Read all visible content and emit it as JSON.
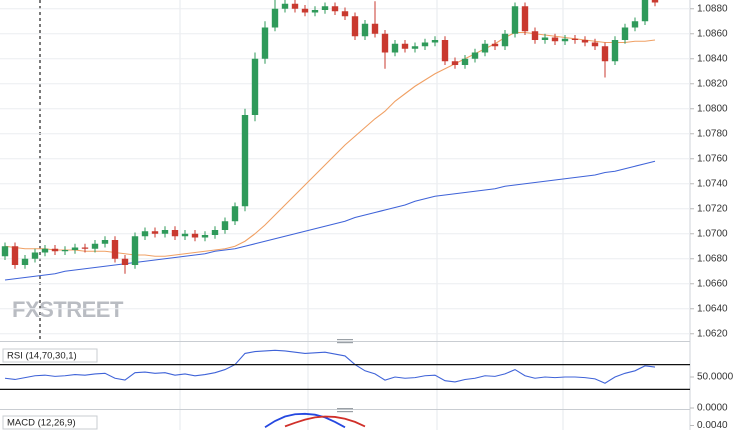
{
  "watermark": "FXSTREET",
  "chart_data": [
    {
      "type": "candlestick",
      "up_color": "#2f9a5a",
      "down_color": "#c9392f",
      "open": [
        1.0682,
        1.069,
        1.0675,
        1.068,
        1.0685,
        1.0688,
        1.0686,
        1.0687,
        1.0689,
        1.0688,
        1.0692,
        1.0695,
        1.068,
        1.0675,
        1.0698,
        1.0702,
        1.07,
        1.0703,
        1.0698,
        1.07,
        1.0697,
        1.0699,
        1.0703,
        1.071,
        1.0722,
        1.0795,
        1.084,
        1.0865,
        1.088,
        1.0884,
        1.088,
        1.0877,
        1.0879,
        1.0882,
        1.0878,
        1.0874,
        1.0858,
        1.0868,
        1.086,
        1.0845,
        1.0852,
        1.0848,
        1.085,
        1.0853,
        1.0855,
        1.0838,
        1.0835,
        1.084,
        1.0845,
        1.0852,
        1.085,
        1.086,
        1.0882,
        1.0862,
        1.0855,
        1.0857,
        1.0854,
        1.0856,
        1.0855,
        1.0853,
        1.085,
        1.0838,
        1.0855,
        1.0865,
        1.087,
        1.0888
      ],
      "high": [
        1.0693,
        1.0693,
        1.0683,
        1.0688,
        1.0691,
        1.0691,
        1.069,
        1.0692,
        1.0692,
        1.0695,
        1.0698,
        1.0698,
        1.0683,
        1.0701,
        1.0705,
        1.0705,
        1.0706,
        1.0706,
        1.0703,
        1.0703,
        1.0702,
        1.0706,
        1.0713,
        1.0725,
        1.08,
        1.0845,
        1.087,
        1.0888,
        1.0888,
        1.0887,
        1.0883,
        1.0882,
        1.0885,
        1.0885,
        1.0881,
        1.0877,
        1.0871,
        1.0886,
        1.0863,
        1.0855,
        1.0855,
        1.0853,
        1.0856,
        1.0858,
        1.0858,
        1.0841,
        1.0843,
        1.0848,
        1.0855,
        1.0855,
        1.0863,
        1.0885,
        1.0885,
        1.0865,
        1.086,
        1.086,
        1.0859,
        1.0859,
        1.0858,
        1.0856,
        1.0853,
        1.0858,
        1.0868,
        1.0873,
        1.0891,
        1.0891
      ],
      "low": [
        1.0679,
        1.0672,
        1.0672,
        1.0677,
        1.0682,
        1.0683,
        1.0683,
        1.0684,
        1.0685,
        1.0685,
        1.0689,
        1.0677,
        1.0668,
        1.0672,
        1.0695,
        1.0697,
        1.0697,
        1.0695,
        1.0695,
        1.0694,
        1.0694,
        1.0696,
        1.07,
        1.0707,
        1.0718,
        1.079,
        1.0836,
        1.0862,
        1.0877,
        1.0877,
        1.0874,
        1.0874,
        1.0876,
        1.0875,
        1.0871,
        1.0855,
        1.0855,
        1.0857,
        1.0832,
        1.0842,
        1.0845,
        1.0845,
        1.0847,
        1.085,
        1.0835,
        1.0832,
        1.0832,
        1.0837,
        1.0842,
        1.0847,
        1.0847,
        1.0857,
        1.0859,
        1.0852,
        1.0852,
        1.0851,
        1.0851,
        1.0852,
        1.085,
        1.0847,
        1.0825,
        1.0835,
        1.0852,
        1.0862,
        1.0867,
        1.0882
      ],
      "close": [
        1.069,
        1.0675,
        1.068,
        1.0685,
        1.0688,
        1.0686,
        1.0687,
        1.0689,
        1.0688,
        1.0692,
        1.0695,
        1.068,
        1.0675,
        1.0698,
        1.0702,
        1.07,
        1.0703,
        1.0698,
        1.07,
        1.0697,
        1.0699,
        1.0703,
        1.071,
        1.0722,
        1.0795,
        1.084,
        1.0865,
        1.088,
        1.0884,
        1.088,
        1.0877,
        1.0879,
        1.0882,
        1.0878,
        1.0874,
        1.0858,
        1.0868,
        1.086,
        1.0845,
        1.0852,
        1.0848,
        1.085,
        1.0853,
        1.0855,
        1.0838,
        1.0835,
        1.084,
        1.0845,
        1.0852,
        1.085,
        1.086,
        1.0882,
        1.0862,
        1.0855,
        1.0857,
        1.0854,
        1.0856,
        1.0855,
        1.0853,
        1.085,
        1.0838,
        1.0855,
        1.0865,
        1.087,
        1.0888,
        1.0885
      ],
      "series": [
        {
          "color": "#f0a064",
          "values": [
            1.069,
            1.0689,
            1.0688,
            1.0688,
            1.0688,
            1.0687,
            1.0687,
            1.0687,
            1.0686,
            1.0686,
            1.0686,
            1.0685,
            1.0684,
            1.0683,
            1.0683,
            1.0682,
            1.0682,
            1.0683,
            1.0684,
            1.0685,
            1.0686,
            1.0687,
            1.0688,
            1.069,
            1.0694,
            1.07,
            1.0707,
            1.0715,
            1.0723,
            1.0731,
            1.0739,
            1.0747,
            1.0755,
            1.0763,
            1.0771,
            1.0778,
            1.0785,
            1.0792,
            1.0798,
            1.0806,
            1.0812,
            1.0818,
            1.0823,
            1.0828,
            1.0832,
            1.0836,
            1.084,
            1.0844,
            1.0848,
            1.0852,
            1.0857,
            1.0861,
            1.0861,
            1.086,
            1.0859,
            1.0858,
            1.0857,
            1.0856,
            1.0855,
            1.0854,
            1.0853,
            1.0853,
            1.0853,
            1.0854,
            1.0854,
            1.0855
          ]
        },
        {
          "color": "#3f63d8",
          "values": [
            1.0663,
            1.0664,
            1.0665,
            1.0666,
            1.0667,
            1.0668,
            1.067,
            1.0671,
            1.0672,
            1.0673,
            1.0674,
            1.0675,
            1.0676,
            1.0677,
            1.0678,
            1.0679,
            1.068,
            1.0681,
            1.0682,
            1.0683,
            1.0684,
            1.0686,
            1.0687,
            1.0688,
            1.069,
            1.0692,
            1.0694,
            1.0696,
            1.0698,
            1.07,
            1.0702,
            1.0704,
            1.0706,
            1.0708,
            1.071,
            1.0713,
            1.0715,
            1.0717,
            1.0719,
            1.0721,
            1.0723,
            1.0726,
            1.0728,
            1.073,
            1.0731,
            1.0732,
            1.0733,
            1.0734,
            1.0735,
            1.0736,
            1.0738,
            1.0739,
            1.074,
            1.0741,
            1.0742,
            1.0743,
            1.0744,
            1.0745,
            1.0746,
            1.0747,
            1.0749,
            1.075,
            1.0752,
            1.0754,
            1.0756,
            1.0758
          ]
        }
      ],
      "ylim": [
        1.0615,
        1.0887
      ],
      "yticks": [
        {
          "value": 1.062,
          "label": "1.0620"
        },
        {
          "value": 1.064,
          "label": "1.0640"
        },
        {
          "value": 1.066,
          "label": "1.0660"
        },
        {
          "value": 1.068,
          "label": "1.0680"
        },
        {
          "value": 1.07,
          "label": "1.0700"
        },
        {
          "value": 1.072,
          "label": "1.0720"
        },
        {
          "value": 1.074,
          "label": "1.0740"
        },
        {
          "value": 1.076,
          "label": "1.0760"
        },
        {
          "value": 1.078,
          "label": "1.0780"
        },
        {
          "value": 1.08,
          "label": "1.0800"
        },
        {
          "value": 1.082,
          "label": "1.0820"
        },
        {
          "value": 1.084,
          "label": "1.0840"
        },
        {
          "value": 1.086,
          "label": "1.0860"
        },
        {
          "value": 1.088,
          "label": "1.0880"
        }
      ],
      "grid": true
    },
    {
      "type": "line",
      "title": "RSI (14,70,30,1)",
      "series": [
        {
          "color": "#3f63d8",
          "values": [
            48,
            46,
            49,
            52,
            53,
            51,
            52,
            54,
            53,
            55,
            56,
            48,
            45,
            57,
            58,
            56,
            57,
            53,
            55,
            52,
            54,
            57,
            62,
            70,
            88,
            91,
            92,
            93,
            92,
            90,
            88,
            89,
            90,
            87,
            84,
            70,
            60,
            55,
            45,
            50,
            48,
            49,
            52,
            53,
            44,
            42,
            46,
            48,
            52,
            51,
            55,
            62,
            52,
            48,
            50,
            49,
            50,
            50,
            49,
            47,
            40,
            50,
            56,
            60,
            68,
            66
          ]
        }
      ],
      "levels": [
        70,
        30
      ],
      "ylim": [
        0,
        101.6
      ],
      "yticks": [
        {
          "value": 50,
          "label": "50.0000"
        },
        {
          "value": 0,
          "label": "0.0000"
        }
      ]
    },
    {
      "type": "line",
      "title": "MACD (12,26,9)",
      "series": [
        {
          "color": "#2548e0",
          "values": [
            null,
            null,
            null,
            null,
            null,
            null,
            null,
            null,
            null,
            null,
            null,
            null,
            null,
            null,
            null,
            null,
            null,
            null,
            null,
            null,
            null,
            null,
            null,
            null,
            null,
            null,
            0.0036,
            0.005,
            0.006,
            0.0065,
            0.0066,
            0.0064,
            0.0058,
            0.0048,
            0.0036,
            null,
            null,
            null,
            null,
            null,
            null,
            null,
            null,
            null,
            null,
            null,
            null,
            null,
            null,
            null,
            null,
            null,
            null,
            null,
            null,
            null,
            null,
            null,
            null,
            null,
            null,
            null,
            null,
            null,
            null,
            null
          ]
        },
        {
          "color": "#d0302a",
          "values": [
            null,
            null,
            null,
            null,
            null,
            null,
            null,
            null,
            null,
            null,
            null,
            null,
            null,
            null,
            null,
            null,
            null,
            null,
            null,
            null,
            null,
            null,
            null,
            null,
            null,
            null,
            null,
            null,
            0.0038,
            0.0046,
            0.0053,
            0.0058,
            0.006,
            0.0059,
            0.0055,
            0.0048,
            0.0038,
            null,
            null,
            null,
            null,
            null,
            null,
            null,
            null,
            null,
            null,
            null,
            null,
            null,
            null,
            null,
            null,
            null,
            null,
            null,
            null,
            null,
            null,
            null,
            null,
            null
          ]
        }
      ],
      "ylim": [
        0.003,
        0.007
      ],
      "yticks": [
        {
          "value": 0.004,
          "label": "0.0040"
        }
      ]
    }
  ]
}
